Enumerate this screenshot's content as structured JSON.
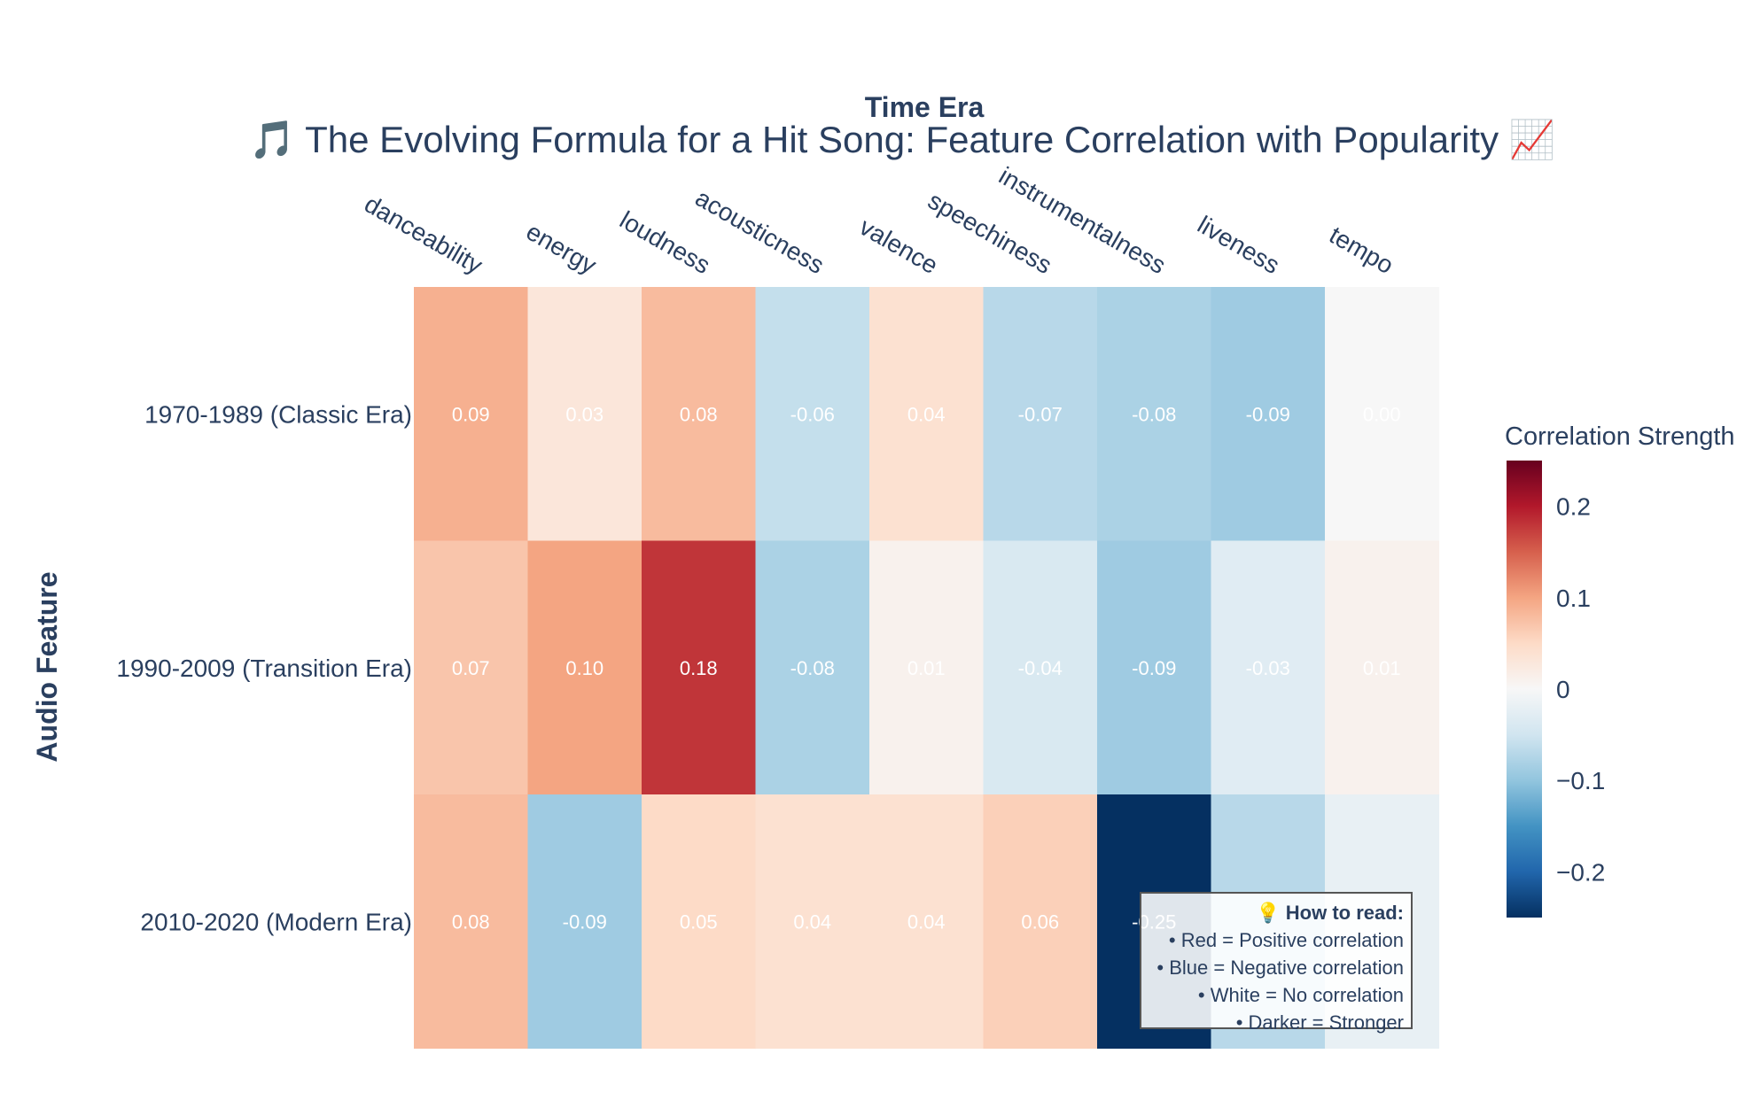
{
  "chart_data": {
    "type": "heatmap",
    "title": "🎵 The Evolving Formula for a Hit Song: Feature Correlation with Popularity 📈",
    "xlabel": "Time Era",
    "ylabel": "Audio Feature",
    "x_axis_side": "top",
    "columns": [
      "danceability",
      "energy",
      "loudness",
      "acousticness",
      "valence",
      "speechiness",
      "instrumentalness",
      "liveness",
      "tempo"
    ],
    "rows": [
      "1970-1989 (Classic Era)",
      "1990-2009 (Transition Era)",
      "2010-2020 (Modern Era)"
    ],
    "values": [
      [
        0.09,
        0.03,
        0.08,
        -0.06,
        0.04,
        -0.07,
        -0.08,
        -0.09,
        0.0
      ],
      [
        0.07,
        0.1,
        0.18,
        -0.08,
        0.01,
        -0.04,
        -0.09,
        -0.03,
        0.01
      ],
      [
        0.08,
        -0.09,
        0.05,
        0.04,
        0.04,
        0.06,
        -0.25,
        -0.07,
        -0.02
      ]
    ],
    "cell_labels": [
      [
        "0.09",
        "0.03",
        "0.08",
        "-0.06",
        "0.04",
        "-0.07",
        "-0.08",
        "-0.09",
        "0.00"
      ],
      [
        "0.07",
        "0.10",
        "0.18",
        "-0.08",
        "0.01",
        "-0.04",
        "-0.09",
        "-0.03",
        "0.01"
      ],
      [
        "0.08",
        "-0.09",
        "0.05",
        "0.04",
        "0.04",
        "0.06",
        "-0.25",
        "",
        ""
      ]
    ],
    "colorscale": "RdBu (reversed)",
    "zmin": -0.25,
    "zmax": 0.25,
    "colorbar": {
      "title": "Correlation Strength",
      "ticks": [
        0.2,
        0.1,
        0,
        -0.1,
        -0.2
      ],
      "tick_labels": [
        "0.2",
        "0.1",
        "0",
        "−0.1",
        "−0.2"
      ]
    },
    "grid": false,
    "legend": "none"
  },
  "annotation": {
    "title": "💡 How to read:",
    "lines": [
      "• Red = Positive correlation",
      "• Blue = Negative correlation",
      "• White = No correlation",
      "• Darker = Stronger"
    ]
  }
}
